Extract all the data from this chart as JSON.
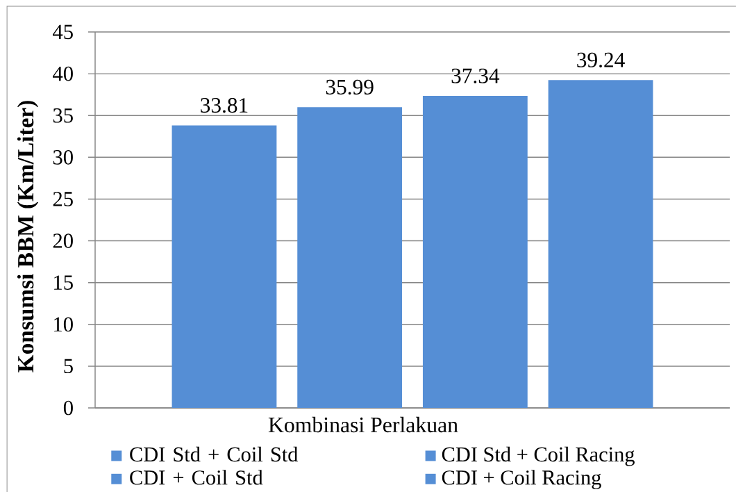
{
  "chart_data": {
    "type": "bar",
    "xlabel": "Kombinasi Perlakuan",
    "ylabel": "Konsumsi BBM (Km/Liter)",
    "categories": [
      null
    ],
    "series": [
      {
        "name": "CDI Std + Coil Std",
        "color": "#558ed5",
        "values": [
          33.81
        ]
      },
      {
        "name": "CDI Std + Coil Racing",
        "color": "#558ed5",
        "values": [
          35.99
        ]
      },
      {
        "name": "CDI + Coil Std",
        "color": "#558ed5",
        "values": [
          37.34
        ]
      },
      {
        "name": "CDI + Coil Racing",
        "color": "#558ed5",
        "values": [
          39.24
        ]
      }
    ],
    "ylim": [
      0,
      45
    ],
    "yticks": [
      0,
      5,
      10,
      15,
      20,
      25,
      30,
      35,
      40,
      45
    ],
    "grid": "y",
    "legend": "bottom",
    "data_labels": true
  }
}
